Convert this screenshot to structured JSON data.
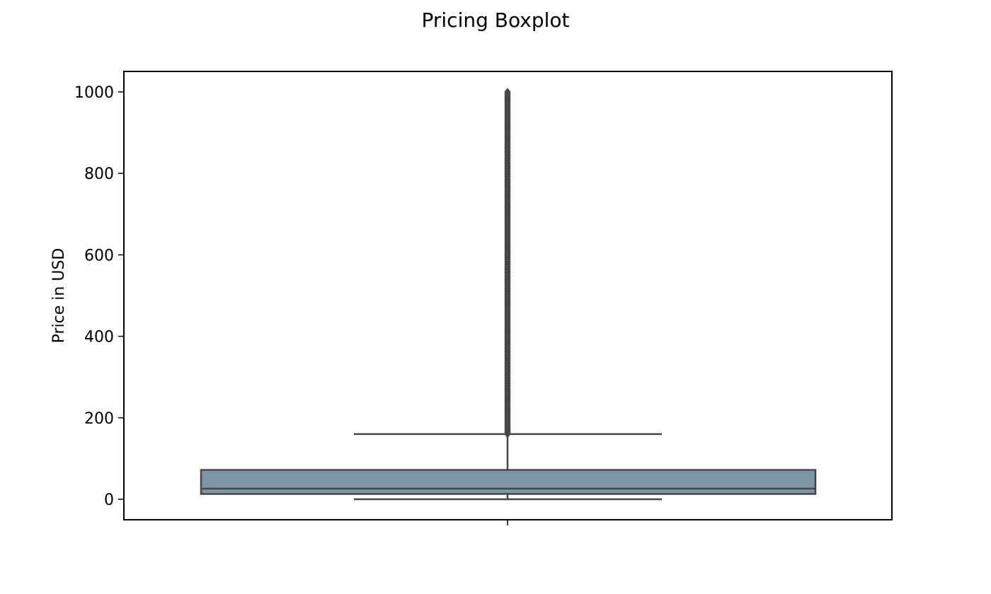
{
  "chart_data": {
    "type": "box",
    "title": "Pricing Boxplot",
    "xlabel": "",
    "ylabel": "Price in USD",
    "ylim": [
      -50,
      1050
    ],
    "yticks": [
      0,
      200,
      400,
      600,
      800,
      1000
    ],
    "grid": false,
    "legend": "none",
    "box": {
      "min": 0,
      "q1": 13,
      "median": 26,
      "q3": 72,
      "whisker_low": 0,
      "whisker_high": 160,
      "outliers_from": 160,
      "outliers_to": 1000
    },
    "colors": {
      "box_fill": "#7c96a3",
      "line": "#474747",
      "axes": "#000000"
    }
  }
}
